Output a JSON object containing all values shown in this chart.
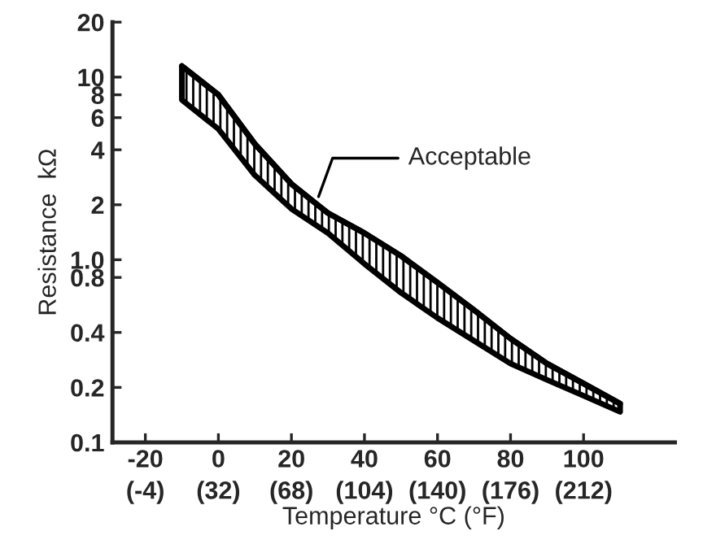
{
  "chart_data": {
    "type": "line",
    "xlabel": "Temperature °C (°F)",
    "ylabel": "Resistance  kΩ",
    "log": "y",
    "x": [
      -10,
      0,
      10,
      20,
      30,
      40,
      50,
      60,
      70,
      80,
      90,
      100,
      110
    ],
    "series": [
      {
        "color": "#000000",
        "values": [
          11.5,
          8,
          4.3,
          2.6,
          1.8,
          1.4,
          1.05,
          0.75,
          0.53,
          0.37,
          0.27,
          0.21,
          0.163
        ],
        "upper": [
          11.5,
          8,
          4.3,
          2.6,
          1.8,
          1.4,
          1.05,
          0.75,
          0.53,
          0.37,
          0.27,
          0.21,
          0.163
        ],
        "lower": [
          7.5,
          5.2,
          2.9,
          1.9,
          1.4,
          0.95,
          0.66,
          0.48,
          0.36,
          0.27,
          0.22,
          0.18,
          0.147
        ]
      }
    ],
    "annotations": [
      {
        "text": "Acceptable",
        "x": 27,
        "y": 2.1
      }
    ],
    "xlim": [
      -29,
      125
    ],
    "ylim": [
      0.1,
      20
    ],
    "xticks": [
      -20,
      0,
      20,
      40,
      60,
      80,
      100
    ],
    "x2lim": [
      -20.2,
      257
    ],
    "x2ticks": [
      {
        "value": -4,
        "label": "(-4)"
      },
      {
        "value": 32,
        "label": "(32)"
      },
      {
        "value": 68,
        "label": "(68)"
      },
      {
        "value": 104,
        "label": "(104)"
      },
      {
        "value": 140,
        "label": "(140)"
      },
      {
        "value": 176,
        "label": "(176)"
      },
      {
        "value": 212,
        "label": "(212)"
      }
    ],
    "yticks": [
      0.1,
      0.2,
      0.4,
      0.8,
      {
        "value": 1.0,
        "label": "1.0"
      },
      2,
      4,
      6,
      8,
      10,
      20
    ],
    "grid": false,
    "legend": false,
    "marker": "none",
    "line_style": "solid"
  }
}
